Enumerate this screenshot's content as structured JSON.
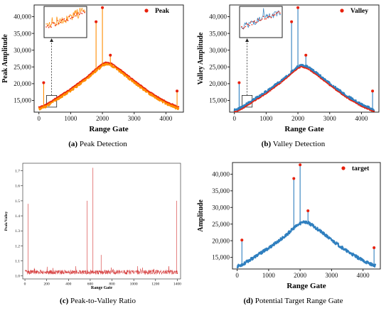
{
  "chart_data": [
    {
      "id": "a",
      "type": "line",
      "caption_letter": "(a)",
      "caption_text": "Peak Detection",
      "xlabel": "Range Gate",
      "ylabel": "Peak Amplitude",
      "xlim": [
        -150,
        4550
      ],
      "ylim": [
        11500,
        43500
      ],
      "xticks": [
        0,
        1000,
        2000,
        3000,
        4000
      ],
      "yticks": [
        15000,
        20000,
        25000,
        30000,
        35000,
        40000
      ],
      "ytick_labels": [
        "15,000",
        "20,000",
        "25,000",
        "30,000",
        "35,000",
        "40,000"
      ],
      "legend": "top-right",
      "series": [
        {
          "name": "Peak",
          "color": "#ff8c00",
          "marker_color": "#e8200c",
          "envelope_x": [
            0,
            200,
            500,
            1000,
            1500,
            1800,
            2000,
            2100,
            2300,
            2600,
            3000,
            3500,
            4000,
            4300,
            4400
          ],
          "envelope_y": [
            12500,
            13200,
            15000,
            18000,
            21500,
            24000,
            25500,
            26000,
            25500,
            23500,
            20500,
            17000,
            14200,
            13000,
            12600
          ],
          "spikes": [
            {
              "x": 150,
              "y": 20300
            },
            {
              "x": 1800,
              "y": 38500
            },
            {
              "x": 2000,
              "y": 42700
            },
            {
              "x": 2250,
              "y": 28500
            },
            {
              "x": 4350,
              "y": 17800
            }
          ]
        }
      ],
      "inset": {
        "present": true,
        "x_range": [
          240,
          560
        ],
        "y_range": [
          13000,
          16500
        ]
      }
    },
    {
      "id": "b",
      "type": "line",
      "caption_letter": "(b)",
      "caption_text": "Valley Detection",
      "xlabel": "Range Gate",
      "ylabel": "Valley Amplitude",
      "xlim": [
        -150,
        4550
      ],
      "ylim": [
        11500,
        43500
      ],
      "xticks": [
        0,
        1000,
        2000,
        3000,
        4000
      ],
      "yticks": [
        15000,
        20000,
        25000,
        30000,
        35000,
        40000
      ],
      "ytick_labels": [
        "15,000",
        "20,000",
        "25,000",
        "30,000",
        "35,000",
        "40,000"
      ],
      "legend": "top-right",
      "series": [
        {
          "name": "Valley",
          "color": "#2f7fbf",
          "marker_color": "#e8200c",
          "envelope_x": [
            0,
            200,
            500,
            1000,
            1500,
            1800,
            2000,
            2100,
            2300,
            2600,
            3000,
            3500,
            4000,
            4300,
            4400
          ],
          "envelope_y": [
            12000,
            12700,
            14500,
            17500,
            21000,
            23500,
            25000,
            25500,
            25000,
            23000,
            20000,
            16500,
            13700,
            12500,
            12100
          ],
          "spikes": [
            {
              "x": 150,
              "y": 20300
            },
            {
              "x": 1800,
              "y": 38500
            },
            {
              "x": 2000,
              "y": 42700
            },
            {
              "x": 2250,
              "y": 28500
            },
            {
              "x": 4350,
              "y": 17800
            }
          ]
        }
      ],
      "inset": {
        "present": true,
        "x_range": [
          240,
          560
        ],
        "y_range": [
          13000,
          16500
        ]
      }
    },
    {
      "id": "c",
      "type": "line",
      "caption_letter": "(c)",
      "caption_text": "Peak-to-Valley Ratio",
      "xlabel": "Range Gate",
      "ylabel": "Peak/Valley",
      "xlim": [
        -20,
        1430
      ],
      "ylim": [
        0.98,
        1.75
      ],
      "xticks": [
        0,
        200,
        400,
        600,
        800,
        1000,
        1200,
        1400
      ],
      "yticks": [
        1.0,
        1.1,
        1.2,
        1.3,
        1.4,
        1.5,
        1.6,
        1.7
      ],
      "ytick_labels": [
        "1.0",
        "1.1",
        "1.2",
        "1.3",
        "1.4",
        "1.5",
        "1.6",
        "1.7"
      ],
      "series": [
        {
          "name": "",
          "color": "#d32f2f",
          "baseline": 1.025,
          "spikes": [
            {
              "x": 30,
              "y": 1.48
            },
            {
              "x": 570,
              "y": 1.5
            },
            {
              "x": 625,
              "y": 1.72
            },
            {
              "x": 700,
              "y": 1.14
            },
            {
              "x": 1395,
              "y": 1.5
            }
          ]
        }
      ]
    },
    {
      "id": "d",
      "type": "line",
      "caption_letter": "(d)",
      "caption_text": "Potential Target Range Gate",
      "xlabel": "Range Gate",
      "ylabel": "Amplitude",
      "xlim": [
        -150,
        4550
      ],
      "ylim": [
        11500,
        43500
      ],
      "xticks": [
        0,
        1000,
        2000,
        3000,
        4000
      ],
      "yticks": [
        15000,
        20000,
        25000,
        30000,
        35000,
        40000
      ],
      "ytick_labels": [
        "15,000",
        "20,000",
        "25,000",
        "30,000",
        "35,000",
        "40,000"
      ],
      "legend": "top-right",
      "series": [
        {
          "name": "target",
          "color": "#2f7fbf",
          "marker_color": "#e8200c",
          "envelope_x": [
            0,
            200,
            500,
            1000,
            1500,
            1800,
            2000,
            2100,
            2300,
            2600,
            3000,
            3500,
            4000,
            4300,
            4400
          ],
          "envelope_y": [
            12300,
            13000,
            14800,
            17800,
            21200,
            23800,
            25200,
            25800,
            25200,
            23200,
            20200,
            16800,
            14000,
            12800,
            12400
          ],
          "spikes": [
            {
              "x": 150,
              "y": 20200
            },
            {
              "x": 1800,
              "y": 38700
            },
            {
              "x": 2000,
              "y": 42800
            },
            {
              "x": 2250,
              "y": 29000
            },
            {
              "x": 4350,
              "y": 17900
            }
          ]
        }
      ]
    }
  ]
}
